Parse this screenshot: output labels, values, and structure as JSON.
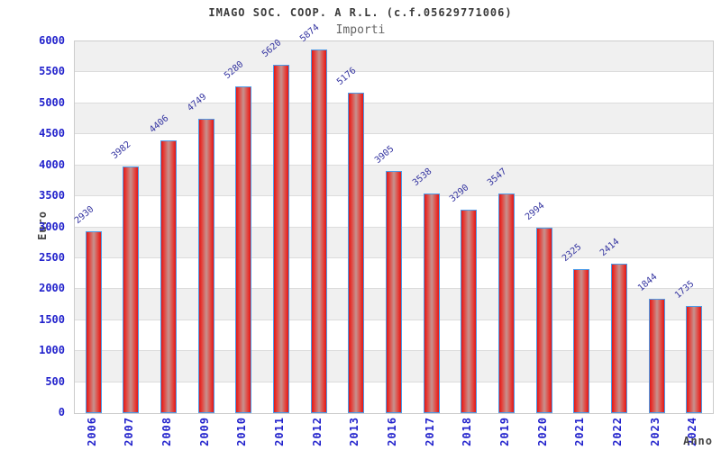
{
  "chart_data": {
    "type": "bar",
    "title": "IMAGO SOC. COOP. A R.L. (c.f.05629771006)",
    "legend_label": "Importi",
    "legend_position": "top-center",
    "xlabel": "Anno",
    "ylabel": "Euro",
    "categories": [
      "2006",
      "2007",
      "2008",
      "2009",
      "2010",
      "2011",
      "2012",
      "2013",
      "2016",
      "2017",
      "2018",
      "2019",
      "2020",
      "2021",
      "2022",
      "2023",
      "2024"
    ],
    "values": [
      2930,
      3982,
      4406,
      4749,
      5280,
      5620,
      5874,
      5176,
      3905,
      3538,
      3290,
      3547,
      2994,
      2325,
      2414,
      1844,
      1735
    ],
    "ylim": [
      0,
      6000
    ],
    "ytick_step": 500,
    "yticks": [
      "0",
      "500",
      "1000",
      "1500",
      "2000",
      "2500",
      "3000",
      "3500",
      "4000",
      "4500",
      "5000",
      "5500",
      "6000"
    ],
    "grid": true,
    "banded_background": true,
    "colors": {
      "background": "#ffffff",
      "band": "#f0f0f0",
      "gridline": "#dcdcdc",
      "plot_border": "#cccccc",
      "bar_edge_red": "#e01717",
      "bar_mid_red": "#e4403a",
      "bar_center": "#c6928e",
      "bar_border": "#4d9be8",
      "axis_tick_label": "#2222cc",
      "value_label": "#3333a0",
      "title_text": "#3a3a3a",
      "legend_text": "#666666",
      "axis_title_text": "#444444"
    }
  }
}
